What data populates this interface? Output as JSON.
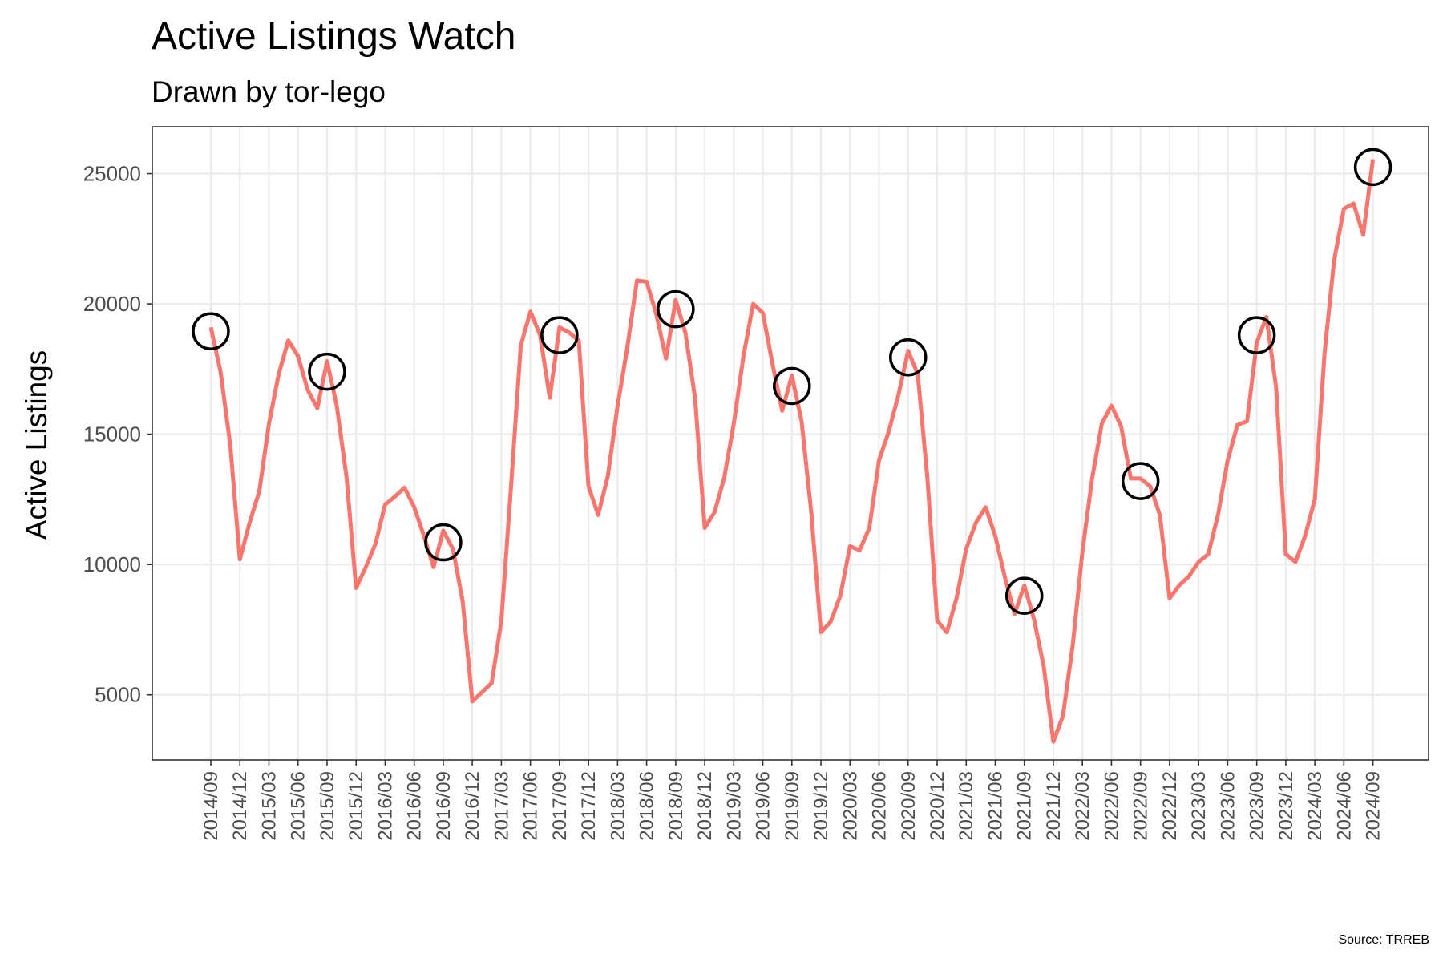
{
  "chart_data": {
    "type": "line",
    "title": "Active Listings Watch",
    "subtitle": "Drawn by tor-lego",
    "xlabel": "",
    "ylabel": "Active Listings",
    "caption": "Source: TRREB",
    "yticks": [
      5000,
      10000,
      15000,
      20000,
      25000
    ],
    "ylim": [
      2500,
      26800
    ],
    "grid": true,
    "legend": "none",
    "colors": {
      "line": "#F8766D",
      "marker": "#000000",
      "grid": "#EBEBEB",
      "tick_text": "#4D4D4D"
    },
    "xtick_labels": [
      "2014/09",
      "2014/12",
      "2015/03",
      "2015/06",
      "2015/09",
      "2015/12",
      "2016/03",
      "2016/06",
      "2016/09",
      "2016/12",
      "2017/03",
      "2017/06",
      "2017/09",
      "2017/12",
      "2018/03",
      "2018/06",
      "2018/09",
      "2018/12",
      "2019/03",
      "2019/06",
      "2019/09",
      "2019/12",
      "2020/03",
      "2020/06",
      "2020/09",
      "2020/12",
      "2021/03",
      "2021/06",
      "2021/09",
      "2021/12",
      "2022/03",
      "2022/06",
      "2022/09",
      "2022/12",
      "2023/03",
      "2023/06",
      "2023/09",
      "2023/12",
      "2024/03",
      "2024/06",
      "2024/09"
    ],
    "series": [
      {
        "x": [
          "2014/09",
          "2014/10",
          "2014/11",
          "2014/12",
          "2015/01",
          "2015/02",
          "2015/03",
          "2015/04",
          "2015/05",
          "2015/06",
          "2015/07",
          "2015/08",
          "2015/09",
          "2015/10",
          "2015/11",
          "2015/12",
          "2016/01",
          "2016/02",
          "2016/03",
          "2016/04",
          "2016/05",
          "2016/06",
          "2016/07",
          "2016/08",
          "2016/09",
          "2016/10",
          "2016/11",
          "2016/12",
          "2017/01",
          "2017/02",
          "2017/03",
          "2017/04",
          "2017/05",
          "2017/06",
          "2017/07",
          "2017/08",
          "2017/09",
          "2017/10",
          "2017/11",
          "2017/12",
          "2018/01",
          "2018/02",
          "2018/03",
          "2018/04",
          "2018/05",
          "2018/06",
          "2018/07",
          "2018/08",
          "2018/09",
          "2018/10",
          "2018/11",
          "2018/12",
          "2019/01",
          "2019/02",
          "2019/03",
          "2019/04",
          "2019/05",
          "2019/06",
          "2019/07",
          "2019/08",
          "2019/09",
          "2019/10",
          "2019/11",
          "2019/12",
          "2020/01",
          "2020/02",
          "2020/03",
          "2020/04",
          "2020/05",
          "2020/06",
          "2020/07",
          "2020/08",
          "2020/09",
          "2020/10",
          "2020/11",
          "2020/12",
          "2021/01",
          "2021/02",
          "2021/03",
          "2021/04",
          "2021/05",
          "2021/06",
          "2021/07",
          "2021/08",
          "2021/09",
          "2021/10",
          "2021/11",
          "2021/12",
          "2022/01",
          "2022/02",
          "2022/03",
          "2022/04",
          "2022/05",
          "2022/06",
          "2022/07",
          "2022/08",
          "2022/09",
          "2022/10",
          "2022/11",
          "2022/12",
          "2023/01",
          "2023/02",
          "2023/03",
          "2023/04",
          "2023/05",
          "2023/06",
          "2023/07",
          "2023/08",
          "2023/09",
          "2023/10",
          "2023/11",
          "2023/12",
          "2024/01",
          "2024/02",
          "2024/03",
          "2024/04",
          "2024/05",
          "2024/06",
          "2024/07",
          "2024/08",
          "2024/09"
        ],
        "values": [
          19100,
          17400,
          14600,
          10200,
          11600,
          12800,
          15400,
          17300,
          18600,
          18000,
          16700,
          16000,
          17800,
          16100,
          13400,
          9100,
          9900,
          10800,
          12300,
          12600,
          12950,
          12200,
          11100,
          9900,
          11300,
          10600,
          8600,
          4750,
          5100,
          5450,
          7850,
          13000,
          18400,
          19700,
          18800,
          16400,
          19100,
          18900,
          18600,
          13000,
          11900,
          13400,
          16100,
          18300,
          20900,
          20850,
          19600,
          17900,
          20150,
          18900,
          16400,
          11400,
          12000,
          13300,
          15400,
          18000,
          20000,
          19650,
          17700,
          15900,
          17250,
          15500,
          12000,
          7400,
          7800,
          8800,
          10700,
          10550,
          11400,
          14000,
          15100,
          16500,
          18200,
          17300,
          13300,
          7850,
          7400,
          8700,
          10600,
          11600,
          12200,
          11100,
          9500,
          8100,
          9200,
          7900,
          6100,
          3200,
          4200,
          6900,
          10500,
          13300,
          15400,
          16100,
          15300,
          13300,
          13300,
          13000,
          11900,
          8700,
          9200,
          9550,
          10100,
          10400,
          11900,
          14000,
          15350,
          15500,
          18500,
          19500,
          16800,
          10400,
          10100,
          11100,
          12500,
          18100,
          21700,
          23650,
          23850,
          22650,
          25550
        ]
      }
    ],
    "highlight_points": [
      {
        "x": "2014/09",
        "value": 18950
      },
      {
        "x": "2015/09",
        "value": 17400
      },
      {
        "x": "2016/09",
        "value": 10850
      },
      {
        "x": "2017/09",
        "value": 18800
      },
      {
        "x": "2018/09",
        "value": 19800
      },
      {
        "x": "2019/09",
        "value": 16850
      },
      {
        "x": "2020/09",
        "value": 17950
      },
      {
        "x": "2021/09",
        "value": 8800
      },
      {
        "x": "2022/09",
        "value": 13200
      },
      {
        "x": "2023/09",
        "value": 18800
      },
      {
        "x": "2024/09",
        "value": 25250
      }
    ]
  }
}
